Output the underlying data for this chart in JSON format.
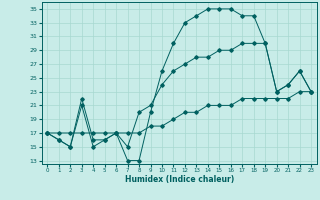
{
  "xlabel": "Humidex (Indice chaleur)",
  "bg_color": "#c8ece8",
  "grid_color": "#a8d8d0",
  "line_color": "#006060",
  "xlim": [
    -0.5,
    23.5
  ],
  "ylim": [
    12.5,
    36
  ],
  "yticks": [
    13,
    15,
    17,
    19,
    21,
    23,
    25,
    27,
    29,
    31,
    33,
    35
  ],
  "xticks": [
    0,
    1,
    2,
    3,
    4,
    5,
    6,
    7,
    8,
    9,
    10,
    11,
    12,
    13,
    14,
    15,
    16,
    17,
    18,
    19,
    20,
    21,
    22,
    23
  ],
  "series1_x": [
    0,
    1,
    2,
    3,
    4,
    5,
    6,
    7,
    8,
    9,
    10,
    11,
    12,
    13,
    14,
    15,
    16,
    17,
    18,
    19,
    20,
    21,
    22,
    23
  ],
  "series1_y": [
    17,
    16,
    15,
    21,
    15,
    16,
    17,
    13,
    13,
    20,
    26,
    30,
    33,
    34,
    35,
    35,
    35,
    34,
    34,
    30,
    23,
    24,
    26,
    23
  ],
  "series2_x": [
    0,
    1,
    2,
    3,
    4,
    5,
    6,
    7,
    8,
    9,
    10,
    11,
    12,
    13,
    14,
    15,
    16,
    17,
    18,
    19,
    20,
    21,
    22,
    23
  ],
  "series2_y": [
    17,
    16,
    15,
    22,
    16,
    16,
    17,
    15,
    20,
    21,
    24,
    26,
    27,
    28,
    28,
    29,
    29,
    30,
    30,
    30,
    23,
    24,
    26,
    23
  ],
  "series3_x": [
    0,
    1,
    2,
    3,
    4,
    5,
    6,
    7,
    8,
    9,
    10,
    11,
    12,
    13,
    14,
    15,
    16,
    17,
    18,
    19,
    20,
    21,
    22,
    23
  ],
  "series3_y": [
    17,
    17,
    17,
    17,
    17,
    17,
    17,
    17,
    17,
    18,
    18,
    19,
    20,
    20,
    21,
    21,
    21,
    22,
    22,
    22,
    22,
    22,
    23,
    23
  ]
}
